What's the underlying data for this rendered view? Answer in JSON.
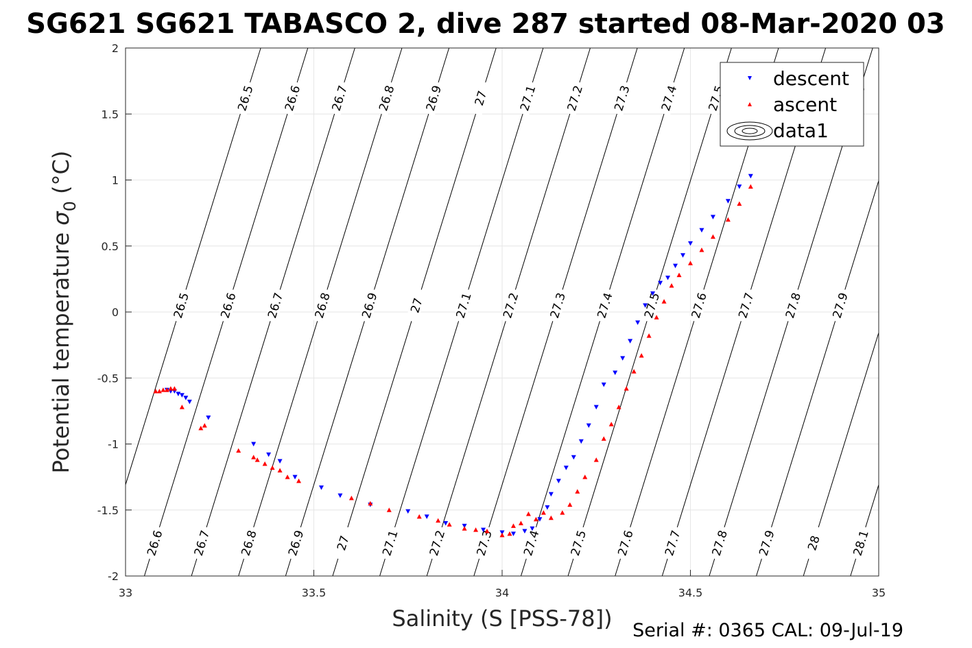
{
  "chart_data": {
    "type": "scatter",
    "title": "SG621 SG621 TABASCO 2, dive 287 started 08-Mar-2020 03",
    "xlabel": "Salinity (S [PSS-78])",
    "ylabel_main": "Potential temperature ",
    "ylabel_sigma": "σ",
    "ylabel_sub": "0",
    "ylabel_unit": " (°C)",
    "xlim": [
      33,
      35
    ],
    "ylim": [
      -2,
      2
    ],
    "x_ticks": [
      33,
      33.5,
      34,
      34.5,
      35
    ],
    "x_tick_labels": [
      "33",
      "33.5",
      "34",
      "34.5",
      "35"
    ],
    "y_ticks": [
      -2,
      -1.5,
      -1,
      -0.5,
      0,
      0.5,
      1,
      1.5,
      2
    ],
    "y_tick_labels": [
      "-2",
      "-1.5",
      "-1",
      "-0.5",
      "0",
      "0.5",
      "1",
      "1.5",
      "2"
    ],
    "grid": true,
    "legend_position": "top-right",
    "footer": "Serial #: 0365  CAL: 09-Jul-19",
    "series": [
      {
        "name": "descent",
        "marker": "triangle-down",
        "color": "#0000ff",
        "x": [
          33.11,
          33.12,
          33.13,
          33.14,
          33.15,
          33.16,
          33.17,
          33.22,
          33.34,
          33.38,
          33.41,
          33.45,
          33.52,
          33.57,
          33.65,
          33.75,
          33.8,
          33.85,
          33.9,
          33.95,
          34.0,
          34.03,
          34.06,
          34.08,
          34.1,
          34.12,
          34.13,
          34.15,
          34.17,
          34.19,
          34.21,
          34.23,
          34.25,
          34.27,
          34.3,
          34.32,
          34.34,
          34.36,
          34.38,
          34.4,
          34.42,
          34.44,
          34.46,
          34.48,
          34.5,
          34.53,
          34.56,
          34.6,
          34.63,
          34.66
        ],
        "y": [
          -0.59,
          -0.6,
          -0.6,
          -0.62,
          -0.63,
          -0.65,
          -0.68,
          -0.8,
          -1.0,
          -1.08,
          -1.13,
          -1.25,
          -1.33,
          -1.39,
          -1.46,
          -1.51,
          -1.55,
          -1.6,
          -1.62,
          -1.65,
          -1.67,
          -1.68,
          -1.66,
          -1.64,
          -1.57,
          -1.48,
          -1.38,
          -1.28,
          -1.18,
          -1.1,
          -0.98,
          -0.86,
          -0.72,
          -0.55,
          -0.46,
          -0.35,
          -0.22,
          -0.08,
          0.05,
          0.14,
          0.22,
          0.26,
          0.35,
          0.43,
          0.52,
          0.62,
          0.72,
          0.84,
          0.95,
          1.03
        ]
      },
      {
        "name": "ascent",
        "marker": "triangle-up",
        "color": "#ff0000",
        "x": [
          33.08,
          33.09,
          33.1,
          33.11,
          33.12,
          33.13,
          33.15,
          33.2,
          33.21,
          33.3,
          33.34,
          33.35,
          33.37,
          33.39,
          33.41,
          33.43,
          33.46,
          33.6,
          33.65,
          33.7,
          33.78,
          33.83,
          33.86,
          33.9,
          33.93,
          33.96,
          34.0,
          34.02,
          34.03,
          34.05,
          34.07,
          34.09,
          34.11,
          34.13,
          34.16,
          34.18,
          34.2,
          34.22,
          34.25,
          34.27,
          34.29,
          34.31,
          34.33,
          34.35,
          34.37,
          34.39,
          34.41,
          34.43,
          34.45,
          34.47,
          34.5,
          34.53,
          34.56,
          34.6,
          34.63,
          34.66
        ],
        "y": [
          -0.6,
          -0.6,
          -0.59,
          -0.59,
          -0.58,
          -0.58,
          -0.72,
          -0.88,
          -0.86,
          -1.05,
          -1.1,
          -1.12,
          -1.15,
          -1.18,
          -1.2,
          -1.25,
          -1.28,
          -1.41,
          -1.45,
          -1.5,
          -1.55,
          -1.58,
          -1.61,
          -1.64,
          -1.65,
          -1.66,
          -1.69,
          -1.68,
          -1.62,
          -1.6,
          -1.53,
          -1.57,
          -1.52,
          -1.56,
          -1.52,
          -1.46,
          -1.36,
          -1.25,
          -1.12,
          -0.96,
          -0.85,
          -0.72,
          -0.58,
          -0.45,
          -0.33,
          -0.18,
          -0.04,
          0.08,
          0.2,
          0.28,
          0.37,
          0.47,
          0.57,
          0.7,
          0.82,
          0.95
        ]
      }
    ],
    "contour_legend_label": "data1",
    "isopycnals": [
      {
        "sigma": 26.5,
        "label": "26.5"
      },
      {
        "sigma": 26.6,
        "label": "26.6"
      },
      {
        "sigma": 26.7,
        "label": "26.7"
      },
      {
        "sigma": 26.8,
        "label": "26.8"
      },
      {
        "sigma": 26.9,
        "label": "26.9"
      },
      {
        "sigma": 27.0,
        "label": "27"
      },
      {
        "sigma": 27.1,
        "label": "27.1"
      },
      {
        "sigma": 27.2,
        "label": "27.2"
      },
      {
        "sigma": 27.3,
        "label": "27.3"
      },
      {
        "sigma": 27.4,
        "label": "27.4"
      },
      {
        "sigma": 27.5,
        "label": "27.5"
      },
      {
        "sigma": 27.6,
        "label": "27.6"
      },
      {
        "sigma": 27.7,
        "label": "27.7"
      },
      {
        "sigma": 27.8,
        "label": "27.8"
      },
      {
        "sigma": 27.9,
        "label": "27.9"
      },
      {
        "sigma": 28.0,
        "label": "28"
      },
      {
        "sigma": 28.1,
        "label": "28.1"
      }
    ]
  }
}
